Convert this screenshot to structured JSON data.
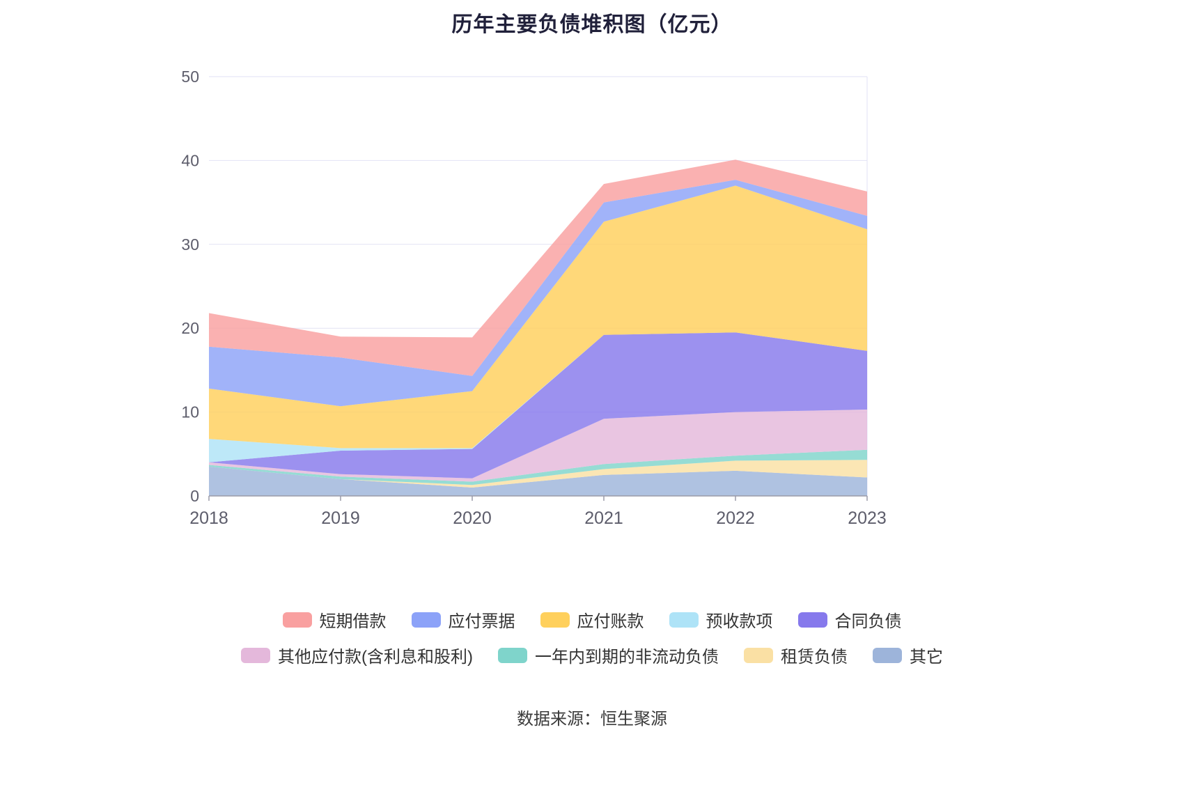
{
  "title": "历年主要负债堆积图（亿元）",
  "footer": "数据来源：恒生聚源",
  "colors": {
    "grid": "#e2e2f4",
    "axis_line": "#9a9aa8",
    "tick_label": "#5d5d6b",
    "title_text": "#20203a",
    "legend_text": "#333333",
    "footer_text": "#3a3a3a"
  },
  "chart_data": {
    "type": "area",
    "stacked": true,
    "title": "历年主要负债堆积图（亿元）",
    "x_labels": [
      "2018",
      "2019",
      "2020",
      "2021",
      "2022",
      "2023"
    ],
    "ylim": [
      0,
      50
    ],
    "yticks": [
      0,
      10,
      20,
      30,
      40,
      50
    ],
    "grid": true,
    "legend_position": "bottom",
    "stack_order": "last-series-at-bottom",
    "series": [
      {
        "name": "短期借款",
        "color": "#f9a0a0",
        "values": [
          4.0,
          2.5,
          4.6,
          2.2,
          2.4,
          2.9
        ]
      },
      {
        "name": "应付票据",
        "color": "#8ca2f8",
        "values": [
          5.0,
          5.8,
          1.8,
          2.3,
          0.7,
          1.6
        ]
      },
      {
        "name": "应付账款",
        "color": "#ffd05c",
        "values": [
          6.0,
          5.0,
          6.8,
          13.5,
          17.5,
          14.5
        ]
      },
      {
        "name": "预收款项",
        "color": "#aee3f7",
        "values": [
          2.8,
          0.3,
          0.1,
          0.0,
          0.0,
          0.0
        ]
      },
      {
        "name": "合同负债",
        "color": "#8679ec",
        "values": [
          0.0,
          2.8,
          3.5,
          10.0,
          9.5,
          7.0
        ]
      },
      {
        "name": "其他应付款(含利息和股利)",
        "color": "#e4b8db",
        "values": [
          0.3,
          0.3,
          0.4,
          5.4,
          5.2,
          4.8
        ]
      },
      {
        "name": "一年内到期的非流动负债",
        "color": "#7fd4cb",
        "values": [
          0.2,
          0.3,
          0.4,
          0.6,
          0.6,
          1.2
        ]
      },
      {
        "name": "租赁负债",
        "color": "#fae0a4",
        "values": [
          0.0,
          0.0,
          0.3,
          0.7,
          1.2,
          2.1
        ]
      },
      {
        "name": "其它",
        "color": "#9db4da",
        "values": [
          3.5,
          2.0,
          1.0,
          2.5,
          3.0,
          2.2
        ]
      }
    ],
    "legend_rows": [
      [
        0,
        1,
        2,
        3,
        4
      ],
      [
        5,
        6,
        7,
        8
      ]
    ]
  }
}
